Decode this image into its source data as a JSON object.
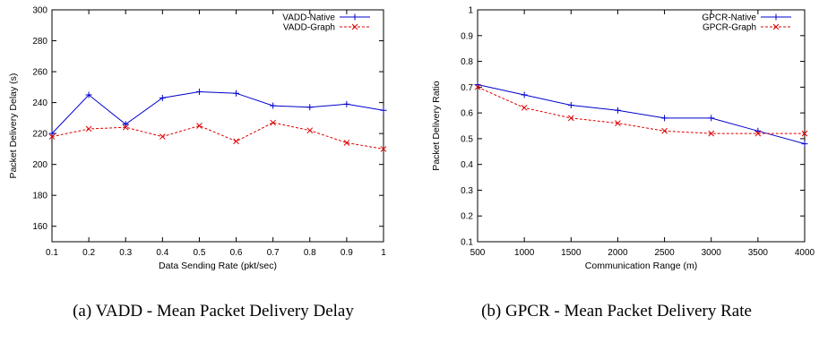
{
  "chart_data": [
    {
      "type": "line",
      "xlabel": "Data Sending Rate (pkt/sec)",
      "ylabel": "Packet Delivery Delay (s)",
      "xlim": [
        0.1,
        1.0
      ],
      "ylim": [
        150,
        300
      ],
      "xticks": [
        0.1,
        0.2,
        0.3,
        0.4,
        0.5,
        0.6,
        0.7,
        0.8,
        0.9,
        1.0
      ],
      "xtick_labels": [
        "0.1",
        "0.2",
        "0.3",
        "0.4",
        "0.5",
        "0.6",
        "0.7",
        "0.8",
        "0.9",
        "1"
      ],
      "yticks": [
        160,
        180,
        200,
        220,
        240,
        260,
        280,
        300
      ],
      "ytick_labels": [
        "160",
        "180",
        "200",
        "220",
        "240",
        "260",
        "280",
        "300"
      ],
      "legend_position": "top-right",
      "grid": false,
      "x": [
        0.1,
        0.2,
        0.3,
        0.4,
        0.5,
        0.6,
        0.7,
        0.8,
        0.9,
        1.0
      ],
      "series": [
        {
          "name": "VADD-Native",
          "color": "#0000cc",
          "marker": "plus",
          "dash": "solid",
          "values": [
            220,
            245,
            226,
            243,
            247,
            246,
            238,
            237,
            239,
            235
          ]
        },
        {
          "name": "VADD-Graph",
          "color": "#dd0000",
          "marker": "cross",
          "dash": "dashed",
          "values": [
            218,
            223,
            224,
            218,
            225,
            215,
            227,
            222,
            214,
            210
          ]
        }
      ]
    },
    {
      "type": "line",
      "xlabel": "Communication Range (m)",
      "ylabel": "Packet Delivery Ratio",
      "xlim": [
        500,
        4000
      ],
      "ylim": [
        0.1,
        1.0
      ],
      "xticks": [
        500,
        1000,
        1500,
        2000,
        2500,
        3000,
        3500,
        4000
      ],
      "xtick_labels": [
        "500",
        "1000",
        "1500",
        "2000",
        "2500",
        "3000",
        "3500",
        "4000"
      ],
      "yticks": [
        0.1,
        0.2,
        0.3,
        0.4,
        0.5,
        0.6,
        0.7,
        0.8,
        0.9,
        1.0
      ],
      "ytick_labels": [
        "0.1",
        "0.2",
        "0.3",
        "0.4",
        "0.5",
        "0.6",
        "0.7",
        "0.8",
        "0.9",
        "1"
      ],
      "legend_position": "top-right",
      "grid": false,
      "x": [
        500,
        1000,
        1500,
        2000,
        2500,
        3000,
        3500,
        4000
      ],
      "series": [
        {
          "name": "GPCR-Native",
          "color": "#0000cc",
          "marker": "plus",
          "dash": "solid",
          "values": [
            0.71,
            0.67,
            0.63,
            0.61,
            0.58,
            0.58,
            0.53,
            0.48
          ]
        },
        {
          "name": "GPCR-Graph",
          "color": "#dd0000",
          "marker": "cross",
          "dash": "dashed",
          "values": [
            0.7,
            0.62,
            0.58,
            0.56,
            0.53,
            0.52,
            0.52,
            0.52
          ]
        }
      ]
    }
  ],
  "captions": {
    "a": "(a)  VADD - Mean Packet Delivery Delay",
    "b": "(b)  GPCR - Mean Packet Delivery Rate"
  }
}
